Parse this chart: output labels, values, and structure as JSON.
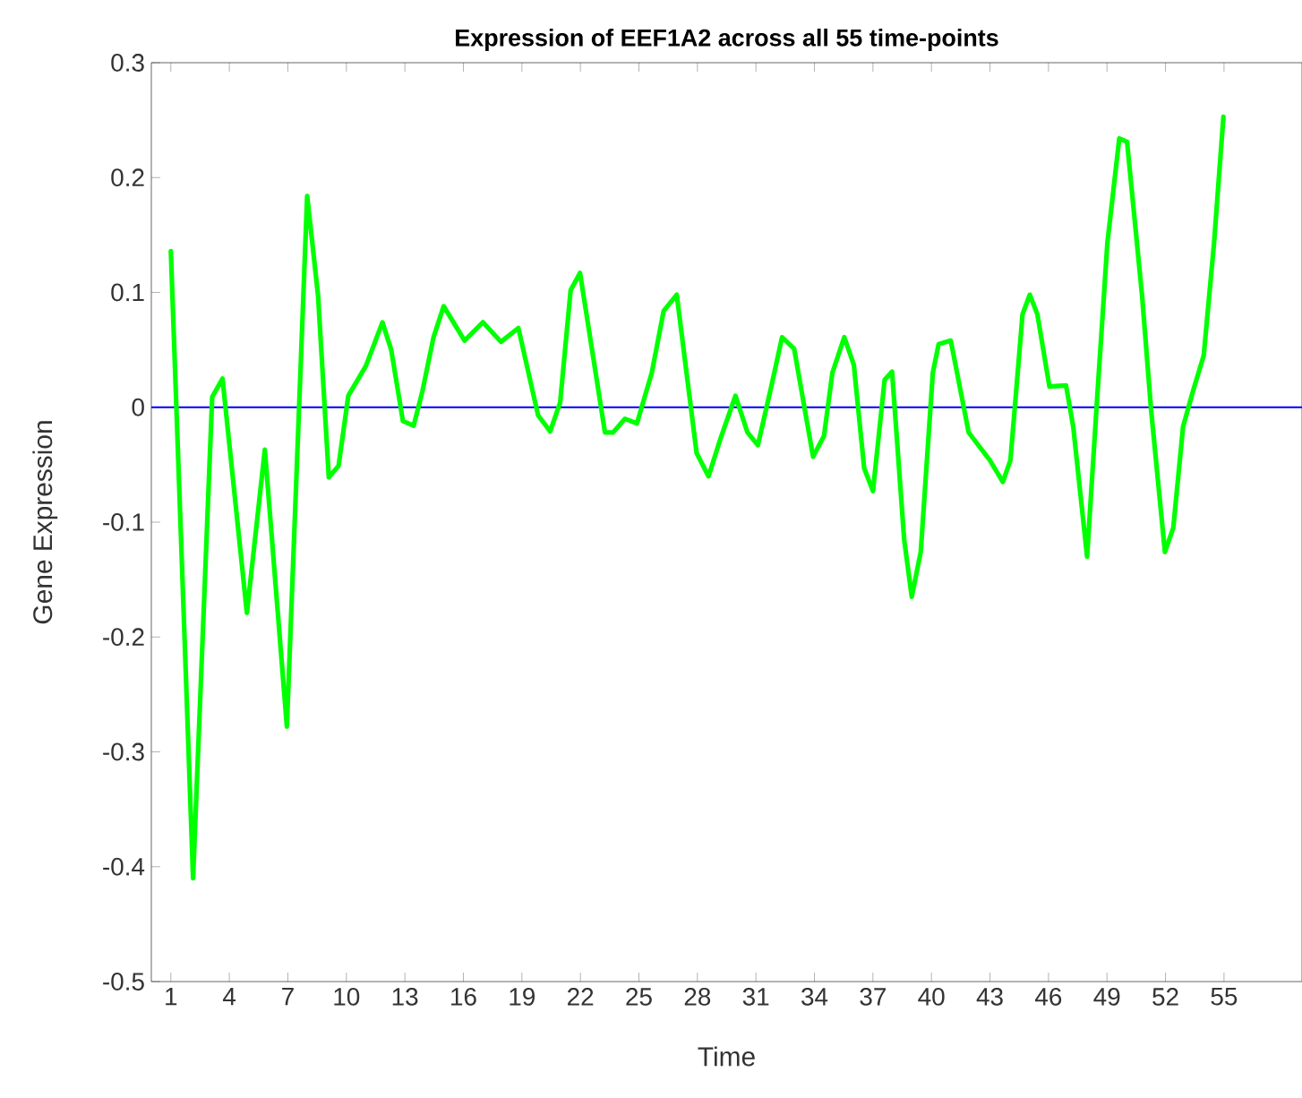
{
  "chart_data": {
    "type": "line",
    "title": "Expression of EEF1A2 across all 55  time-points",
    "xlabel": "Time",
    "ylabel": "Gene Expression",
    "series": [
      {
        "color": "#00ff00",
        "x": [
          1,
          2.14,
          3.12,
          3.65,
          4.9,
          5.82,
          6.95,
          7.99,
          8.55,
          9.1,
          9.6,
          10.1,
          11.0,
          11.85,
          12.3,
          12.9,
          13.45,
          13.9,
          14.47,
          14.99,
          16.06,
          17.0,
          17.93,
          18.82,
          19.83,
          20.45,
          20.96,
          21.5,
          21.98,
          23.26,
          23.67,
          24.28,
          24.9,
          25.66,
          26.27,
          26.94,
          27.96,
          28.57,
          29.19,
          29.95,
          30.57,
          31.1,
          31.8,
          32.34,
          32.96,
          33.93,
          34.49,
          34.92,
          35.53,
          36.02,
          36.55,
          37.0,
          37.6,
          37.98,
          38.6,
          38.99,
          39.45,
          40.07,
          40.37,
          40.99,
          41.91,
          42.99,
          43.66,
          44.05,
          44.67,
          45.04,
          45.43,
          46.05,
          46.9,
          47.27,
          47.98,
          48.5,
          49.02,
          49.63,
          50.03,
          50.8,
          51.26,
          51.97,
          52.4,
          52.9,
          53.41,
          53.96,
          54.49,
          54.97
        ],
        "values": [
          0.136,
          -0.41,
          0.009,
          0.025,
          -0.179,
          -0.037,
          -0.278,
          0.184,
          0.097,
          -0.061,
          -0.051,
          0.01,
          0.036,
          0.074,
          0.05,
          -0.012,
          -0.016,
          0.014,
          0.061,
          0.088,
          0.058,
          0.074,
          0.057,
          0.069,
          -0.007,
          -0.021,
          0.004,
          0.102,
          0.117,
          -0.022,
          -0.022,
          -0.01,
          -0.014,
          0.03,
          0.084,
          0.098,
          -0.04,
          -0.06,
          -0.027,
          0.01,
          -0.022,
          -0.033,
          0.019,
          0.061,
          0.051,
          -0.043,
          -0.025,
          0.03,
          0.061,
          0.037,
          -0.053,
          -0.073,
          0.024,
          0.031,
          -0.115,
          -0.165,
          -0.126,
          0.03,
          0.055,
          0.058,
          -0.022,
          -0.046,
          -0.065,
          -0.046,
          0.081,
          0.098,
          0.081,
          0.018,
          0.019,
          -0.017,
          -0.13,
          0.009,
          0.143,
          0.234,
          0.231,
          0.097,
          -0.002,
          -0.126,
          -0.105,
          -0.017,
          0.014,
          0.045,
          0.143,
          0.253
        ]
      }
    ],
    "xlim": [
      0,
      59
    ],
    "xticks": [
      1,
      4,
      7,
      10,
      13,
      16,
      19,
      22,
      25,
      28,
      31,
      34,
      37,
      40,
      43,
      46,
      49,
      52,
      55
    ],
    "ylim": [
      -0.5,
      0.3
    ],
    "yticks": [
      -0.5,
      -0.4,
      -0.3,
      -0.2,
      -0.1,
      0,
      0.1,
      0.2,
      0.3
    ],
    "ref_lines": [
      {
        "axis": "y",
        "value": 0,
        "color": "#0000ff"
      }
    ],
    "marker": "none",
    "line_style": "solid"
  }
}
